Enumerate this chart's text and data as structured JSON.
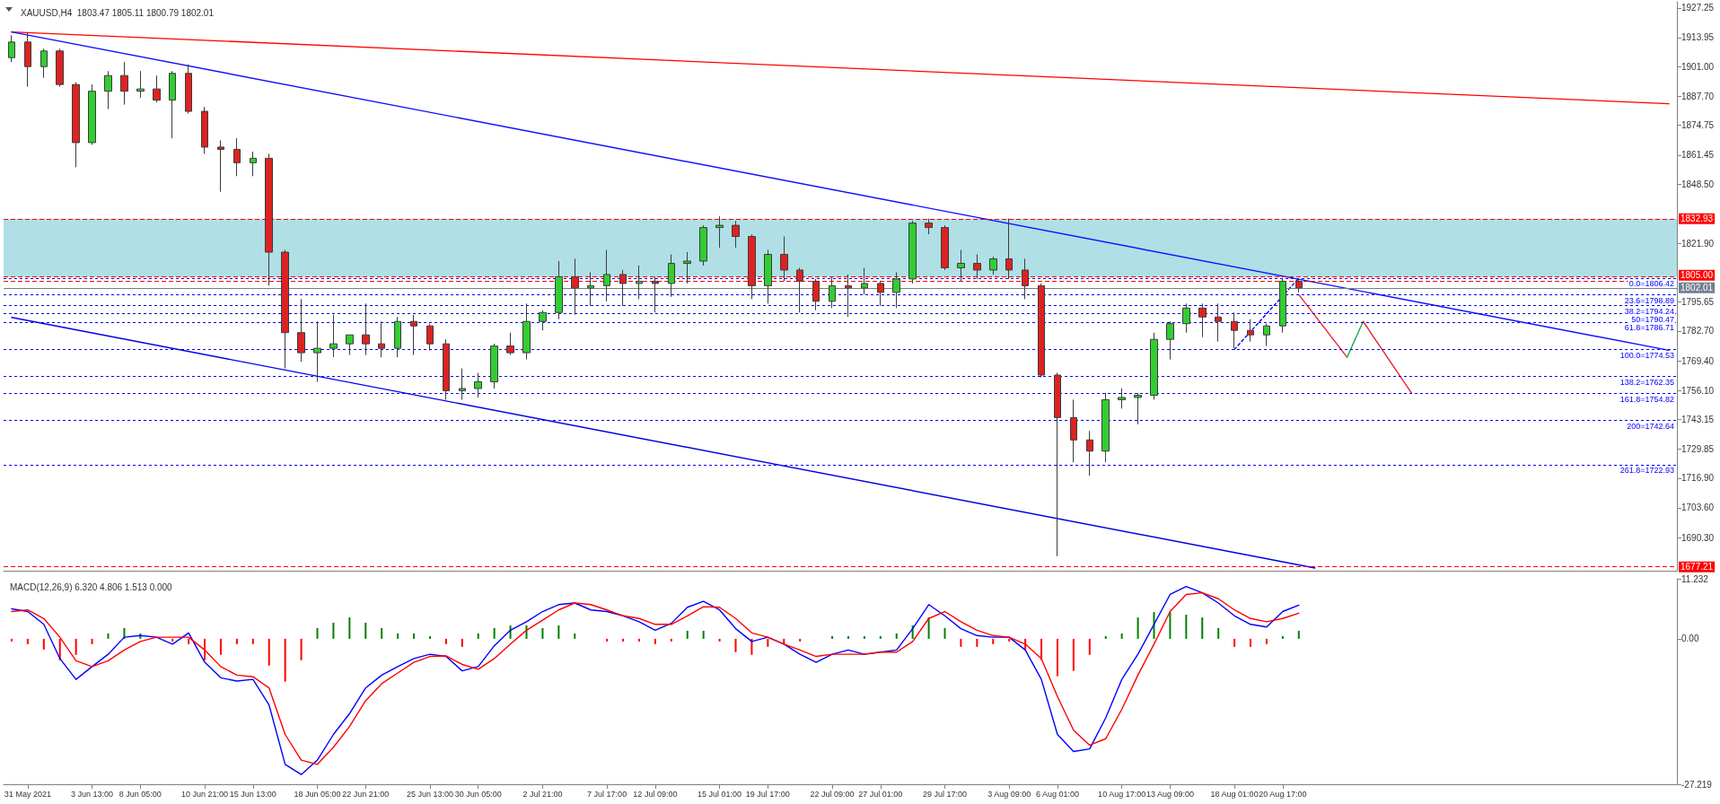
{
  "chart_data": [
    {
      "type": "candlestick",
      "title": "XAUUSD,H4  1803.47 1805.11 1800.79 1802.01",
      "categories": [
        null,
        null,
        null,
        null,
        null,
        null,
        null,
        null,
        null,
        null,
        null,
        null,
        null,
        null,
        null,
        null,
        null,
        null,
        null,
        null,
        null,
        null,
        null,
        null,
        null,
        null,
        null,
        null,
        null,
        null,
        null,
        null,
        null,
        null,
        null,
        null,
        null,
        null,
        null,
        null,
        null,
        null,
        null,
        null,
        null,
        null,
        null,
        null,
        null,
        null,
        null,
        null,
        null,
        null,
        null,
        null,
        null,
        null,
        null,
        null,
        null,
        null,
        null,
        null,
        null,
        null,
        null,
        null,
        null,
        null,
        null,
        null,
        null,
        null,
        null,
        null,
        null,
        null,
        null,
        null,
        null,
        null,
        null,
        null,
        null,
        null,
        null,
        null,
        null,
        null,
        null,
        null,
        null,
        null,
        null,
        null,
        null,
        null,
        null,
        null,
        null,
        null,
        null,
        null
      ],
      "ohlc": [
        [
          1905,
          1915,
          1903,
          1912
        ],
        [
          1912,
          1916,
          1892,
          1901
        ],
        [
          1901,
          1909,
          1896,
          1908
        ],
        [
          1908,
          1909,
          1892,
          1893
        ],
        [
          1893,
          1894,
          1856,
          1867
        ],
        [
          1867,
          1893,
          1866,
          1890
        ],
        [
          1890,
          1899,
          1882,
          1897
        ],
        [
          1897,
          1903,
          1884,
          1890
        ],
        [
          1890,
          1899,
          1887,
          1891
        ],
        [
          1891,
          1897,
          1885,
          1886
        ],
        [
          1886,
          1899,
          1869,
          1898
        ],
        [
          1898,
          1902,
          1880,
          1881
        ],
        [
          1881,
          1883,
          1862,
          1865
        ],
        [
          1865,
          1868,
          1845,
          1864
        ],
        [
          1864,
          1869,
          1852,
          1858
        ],
        [
          1858,
          1863,
          1852,
          1860
        ],
        [
          1860,
          1862,
          1803,
          1818
        ],
        [
          1818,
          1819,
          1766,
          1782
        ],
        [
          1782,
          1797,
          1769,
          1773
        ],
        [
          1773,
          1787,
          1760,
          1775
        ],
        [
          1775,
          1790,
          1771,
          1777
        ],
        [
          1777,
          1781,
          1772,
          1781
        ],
        [
          1781,
          1795,
          1772,
          1777
        ],
        [
          1777,
          1787,
          1771,
          1775
        ],
        [
          1775,
          1789,
          1771,
          1787
        ],
        [
          1787,
          1790,
          1772,
          1785
        ],
        [
          1785,
          1786,
          1774,
          1777
        ],
        [
          1777,
          1779,
          1752,
          1756
        ],
        [
          1756,
          1766,
          1752,
          1757
        ],
        [
          1757,
          1764,
          1753,
          1760
        ],
        [
          1760,
          1777,
          1757,
          1776
        ],
        [
          1776,
          1782,
          1772,
          1773
        ],
        [
          1773,
          1795,
          1770,
          1787
        ],
        [
          1787,
          1792,
          1783,
          1791
        ],
        [
          1791,
          1814,
          1788,
          1807
        ],
        [
          1807,
          1815,
          1790,
          1802
        ],
        [
          1802,
          1809,
          1794,
          1803
        ],
        [
          1803,
          1819,
          1796,
          1808
        ],
        [
          1808,
          1810,
          1794,
          1804
        ],
        [
          1804,
          1812,
          1797,
          1805
        ],
        [
          1805,
          1807,
          1791,
          1804
        ],
        [
          1804,
          1817,
          1798,
          1813
        ],
        [
          1813,
          1818,
          1804,
          1814
        ],
        [
          1814,
          1830,
          1812,
          1829
        ],
        [
          1829,
          1834,
          1820,
          1830
        ],
        [
          1830,
          1832,
          1820,
          1825
        ],
        [
          1825,
          1826,
          1797,
          1803
        ],
        [
          1803,
          1819,
          1795,
          1817
        ],
        [
          1817,
          1825,
          1805,
          1810
        ],
        [
          1810,
          1811,
          1791,
          1805
        ],
        [
          1805,
          1806,
          1792,
          1796
        ],
        [
          1796,
          1807,
          1793,
          1803
        ],
        [
          1803,
          1808,
          1789,
          1802
        ],
        [
          1802,
          1811,
          1799,
          1804
        ],
        [
          1804,
          1805,
          1794,
          1800
        ],
        [
          1800,
          1809,
          1793,
          1806
        ],
        [
          1806,
          1832,
          1804,
          1831
        ],
        [
          1831,
          1833,
          1826,
          1829
        ],
        [
          1829,
          1830,
          1810,
          1811
        ],
        [
          1811,
          1819,
          1805,
          1813
        ],
        [
          1813,
          1817,
          1806,
          1810
        ],
        [
          1810,
          1816,
          1808,
          1815
        ],
        [
          1815,
          1833,
          1806,
          1810
        ],
        [
          1810,
          1815,
          1797,
          1803
        ],
        [
          1803,
          1804,
          1762,
          1763
        ],
        [
          1763,
          1764,
          1682,
          1744
        ],
        [
          1744,
          1752,
          1724,
          1734
        ],
        [
          1734,
          1738,
          1718,
          1729
        ],
        [
          1729,
          1755,
          1724,
          1752
        ],
        [
          1752,
          1757,
          1748,
          1753
        ],
        [
          1753,
          1755,
          1741,
          1754
        ],
        [
          1754,
          1782,
          1752,
          1779
        ],
        [
          1779,
          1787,
          1770,
          1786
        ],
        [
          1786,
          1795,
          1782,
          1793
        ],
        [
          1793,
          1795,
          1780,
          1789
        ],
        [
          1789,
          1795,
          1778,
          1787
        ],
        [
          1787,
          1791,
          1775,
          1783
        ],
        [
          1783,
          1788,
          1778,
          1781
        ],
        [
          1781,
          1786,
          1776,
          1785
        ],
        [
          1785,
          1806,
          1782,
          1805
        ],
        [
          1805,
          1806,
          1800,
          1802.01
        ],
        null,
        null,
        null,
        null,
        null,
        null,
        null,
        null,
        null,
        null,
        null,
        null,
        null,
        null,
        null,
        null,
        null,
        null,
        null,
        null,
        null,
        null,
        null
      ],
      "colors": [
        "#32cd32",
        "#dd2222",
        "#32cd32",
        "#dd2222",
        "#dd2222",
        "#32cd32",
        "#32cd32",
        "#dd2222",
        "#32cd32",
        "#dd2222",
        "#32cd32",
        "#dd2222",
        "#dd2222",
        "#dd2222",
        "#dd2222",
        "#32cd32",
        "#dd2222",
        "#dd2222",
        "#dd2222",
        "#32cd32",
        "#32cd32",
        "#32cd32",
        "#dd2222",
        "#dd2222",
        "#32cd32",
        "#dd2222",
        "#dd2222",
        "#dd2222",
        "#32cd32",
        "#32cd32",
        "#32cd32",
        "#dd2222",
        "#32cd32",
        "#32cd32",
        "#32cd32",
        "#dd2222",
        "#32cd32",
        "#32cd32",
        "#dd2222",
        "#32cd32",
        "#dd2222",
        "#32cd32",
        "#32cd32",
        "#32cd32",
        "#32cd32",
        "#dd2222",
        "#dd2222",
        "#32cd32",
        "#dd2222",
        "#dd2222",
        "#dd2222",
        "#32cd32",
        "#dd2222",
        "#32cd32",
        "#dd2222",
        "#32cd32",
        "#32cd32",
        "#dd2222",
        "#dd2222",
        "#32cd32",
        "#dd2222",
        "#32cd32",
        "#dd2222",
        "#dd2222",
        "#dd2222",
        "#dd2222",
        "#dd2222",
        "#dd2222",
        "#32cd32",
        "#32cd32",
        "#32cd32",
        "#32cd32",
        "#32cd32",
        "#32cd32",
        "#dd2222",
        "#dd2222",
        "#dd2222",
        "#dd2222",
        "#32cd32",
        "#32cd32",
        "#dd2222",
        null,
        null,
        null,
        null,
        null,
        null,
        null,
        null,
        null,
        null,
        null,
        null,
        null,
        null,
        null,
        null,
        null,
        null,
        null,
        null,
        null,
        null,
        null
      ],
      "series": [
        {
          "type": "line",
          "color": "#ff0000",
          "line_style": "solid",
          "values": [
            1916.5,
            null,
            null,
            null,
            null,
            null,
            null,
            null,
            null,
            null,
            null,
            null,
            null,
            null,
            null,
            null,
            null,
            null,
            null,
            null,
            null,
            null,
            null,
            null,
            null,
            null,
            null,
            null,
            null,
            null,
            null,
            null,
            null,
            null,
            null,
            null,
            null,
            null,
            null,
            null,
            null,
            null,
            null,
            null,
            null,
            null,
            null,
            null,
            null,
            null,
            null,
            null,
            null,
            null,
            null,
            null,
            null,
            null,
            null,
            null,
            null,
            null,
            null,
            null,
            null,
            null,
            null,
            null,
            null,
            null,
            null,
            null,
            null,
            null,
            null,
            null,
            null,
            null,
            null,
            null,
            null,
            null,
            null,
            null,
            null,
            null,
            null,
            null,
            null,
            null,
            null,
            null,
            null,
            null,
            null,
            null,
            null,
            null,
            null,
            null,
            null,
            null,
            null,
            1884.4
          ]
        },
        {
          "type": "line",
          "color": "#1010ff",
          "line_style": "solid",
          "values": [
            1916.5,
            null,
            null,
            null,
            null,
            null,
            null,
            null,
            null,
            null,
            null,
            null,
            null,
            null,
            null,
            null,
            null,
            null,
            null,
            null,
            null,
            null,
            null,
            null,
            null,
            null,
            null,
            null,
            null,
            null,
            null,
            null,
            null,
            null,
            null,
            null,
            null,
            null,
            null,
            null,
            null,
            null,
            null,
            null,
            null,
            null,
            null,
            null,
            null,
            null,
            null,
            null,
            null,
            null,
            null,
            null,
            null,
            null,
            null,
            null,
            null,
            null,
            null,
            null,
            null,
            null,
            null,
            null,
            null,
            null,
            null,
            null,
            null,
            null,
            null,
            null,
            null,
            null,
            null,
            null,
            null,
            null,
            null,
            null,
            null,
            null,
            null,
            null,
            null,
            null,
            null,
            null,
            null,
            null,
            null,
            null,
            null,
            null,
            null,
            null,
            null,
            null,
            null,
            1774.1
          ]
        },
        {
          "type": "line",
          "color": "#0000e6",
          "line_style": "solid",
          "values": [
            1788.8,
            null,
            null,
            null,
            null,
            null,
            null,
            null,
            null,
            null,
            null,
            null,
            null,
            null,
            null,
            null,
            null,
            null,
            null,
            null,
            null,
            null,
            null,
            null,
            null,
            null,
            null,
            null,
            null,
            null,
            null,
            null,
            null,
            null,
            null,
            null,
            null,
            null,
            null,
            null,
            null,
            null,
            null,
            null,
            null,
            null,
            null,
            null,
            null,
            null,
            null,
            null,
            null,
            null,
            null,
            null,
            null,
            null,
            null,
            null,
            null,
            null,
            null,
            null,
            null,
            null,
            null,
            null,
            null,
            null,
            null,
            null,
            null,
            null,
            null,
            null,
            null,
            null,
            null,
            null,
            null,
            1676.7,
            null,
            null,
            null,
            null,
            null,
            null,
            null,
            null,
            null,
            null,
            null,
            null,
            null,
            null,
            null,
            null,
            null,
            null,
            null,
            null,
            null,
            null
          ]
        },
        {
          "type": "line",
          "color": "#0000ff",
          "line_style": "dotted",
          "values": [
            null,
            null,
            null,
            null,
            null,
            null,
            null,
            null,
            null,
            null,
            null,
            null,
            null,
            null,
            null,
            null,
            null,
            null,
            null,
            null,
            null,
            null,
            null,
            null,
            null,
            null,
            null,
            null,
            null,
            null,
            null,
            null,
            null,
            null,
            null,
            null,
            null,
            null,
            null,
            null,
            null,
            null,
            null,
            null,
            null,
            null,
            null,
            null,
            null,
            null,
            null,
            null,
            null,
            null,
            null,
            null,
            null,
            null,
            null,
            null,
            null,
            null,
            null,
            null,
            null,
            null,
            null,
            null,
            null,
            null,
            null,
            null,
            null,
            null,
            null,
            null,
            1774.5,
            null,
            null,
            null,
            1806.4,
            null,
            null,
            null,
            null,
            null,
            null,
            null,
            null,
            null,
            null,
            null,
            null,
            null,
            null,
            null,
            null,
            null,
            null,
            null,
            null,
            null,
            null,
            null
          ]
        },
        {
          "type": "line",
          "color": "#e8232a",
          "line_style": "solid",
          "values": [
            null,
            null,
            null,
            null,
            null,
            null,
            null,
            null,
            null,
            null,
            null,
            null,
            null,
            null,
            null,
            null,
            null,
            null,
            null,
            null,
            null,
            null,
            null,
            null,
            null,
            null,
            null,
            null,
            null,
            null,
            null,
            null,
            null,
            null,
            null,
            null,
            null,
            null,
            null,
            null,
            null,
            null,
            null,
            null,
            null,
            null,
            null,
            null,
            null,
            null,
            null,
            null,
            null,
            null,
            null,
            null,
            null,
            null,
            null,
            null,
            null,
            null,
            null,
            null,
            null,
            null,
            null,
            null,
            null,
            null,
            null,
            null,
            null,
            null,
            null,
            null,
            null,
            null,
            null,
            null,
            1799,
            null,
            null,
            1771,
            null,
            null,
            null,
            null,
            null,
            null,
            null,
            null,
            null,
            null,
            null,
            null,
            null,
            null,
            null,
            null,
            null,
            null,
            null,
            null
          ]
        },
        {
          "type": "line",
          "color": "#22aa44",
          "line_style": "solid",
          "values": [
            null,
            null,
            null,
            null,
            null,
            null,
            null,
            null,
            null,
            null,
            null,
            null,
            null,
            null,
            null,
            null,
            null,
            null,
            null,
            null,
            null,
            null,
            null,
            null,
            null,
            null,
            null,
            null,
            null,
            null,
            null,
            null,
            null,
            null,
            null,
            null,
            null,
            null,
            null,
            null,
            null,
            null,
            null,
            null,
            null,
            null,
            null,
            null,
            null,
            null,
            null,
            null,
            null,
            null,
            null,
            null,
            null,
            null,
            null,
            null,
            null,
            null,
            null,
            null,
            null,
            null,
            null,
            null,
            null,
            null,
            null,
            null,
            null,
            null,
            null,
            null,
            null,
            null,
            null,
            null,
            null,
            null,
            null,
            1771,
            1787,
            null,
            null,
            null,
            null,
            null,
            null,
            null,
            null,
            null,
            null,
            null,
            null,
            null,
            null,
            null,
            null,
            null,
            null,
            null
          ]
        },
        {
          "type": "line",
          "color": "#e8232a",
          "line_style": "solid",
          "values": [
            null,
            null,
            null,
            null,
            null,
            null,
            null,
            null,
            null,
            null,
            null,
            null,
            null,
            null,
            null,
            null,
            null,
            null,
            null,
            null,
            null,
            null,
            null,
            null,
            null,
            null,
            null,
            null,
            null,
            null,
            null,
            null,
            null,
            null,
            null,
            null,
            null,
            null,
            null,
            null,
            null,
            null,
            null,
            null,
            null,
            null,
            null,
            null,
            null,
            null,
            null,
            null,
            null,
            null,
            null,
            null,
            null,
            null,
            null,
            null,
            null,
            null,
            null,
            null,
            null,
            null,
            null,
            null,
            null,
            null,
            null,
            null,
            null,
            null,
            null,
            null,
            null,
            null,
            null,
            null,
            null,
            null,
            null,
            null,
            1787,
            null,
            null,
            1755,
            null,
            null,
            null,
            null,
            null,
            null,
            null,
            null,
            null,
            null,
            null,
            null,
            null,
            null,
            null,
            null
          ]
        }
      ],
      "ref_lines": [
        {
          "axis": "y",
          "value": 1832.93,
          "label": "1832.93",
          "color": "#ff0000",
          "line_style": "dashed"
        },
        {
          "axis": "y",
          "value": 1806.89,
          "color": "#ff0000",
          "line_style": "dashed"
        },
        {
          "axis": "y",
          "value": 1805.0,
          "label": "1805.00",
          "color": "#ff0000",
          "line_style": "dashed"
        },
        {
          "axis": "y",
          "value": 1802.01,
          "label": "1802.01",
          "color": "#708090",
          "line_style": "solid"
        },
        {
          "axis": "y",
          "value": 1677.21,
          "label": "1677.21",
          "color": "#ff0000",
          "line_style": "dashed"
        },
        {
          "axis": "y",
          "value": 1806.42,
          "label": "0.0=1806.42",
          "color": "#0000ff",
          "line_style": "dotted"
        },
        {
          "axis": "y",
          "value": 1798.89,
          "label": "23.6=1798.89",
          "color": "#0000ff",
          "line_style": "dotted"
        },
        {
          "axis": "y",
          "value": 1794.24,
          "label": "38.2=1794.24",
          "color": "#0000ff",
          "line_style": "dotted"
        },
        {
          "axis": "y",
          "value": 1790.47,
          "label": "50=1790.47",
          "color": "#0000ff",
          "line_style": "dotted"
        },
        {
          "axis": "y",
          "value": 1786.71,
          "label": "61.8=1786.71",
          "color": "#0000ff",
          "line_style": "dotted"
        },
        {
          "axis": "y",
          "value": 1774.53,
          "label": "100.0=1774.53",
          "color": "#0000ff",
          "line_style": "dotted"
        },
        {
          "axis": "y",
          "value": 1762.35,
          "label": "138.2=1762.35",
          "color": "#0000ff",
          "line_style": "dotted"
        },
        {
          "axis": "y",
          "value": 1754.82,
          "label": "161.8=1754.82",
          "color": "#0000ff",
          "line_style": "dotted"
        },
        {
          "axis": "y",
          "value": 1742.64,
          "label": "200=1742.64",
          "color": "#0000ff",
          "line_style": "dotted"
        },
        {
          "axis": "y",
          "value": 1722.93,
          "label": "261.8=1722.93",
          "color": "#0000ff",
          "line_style": "dotted"
        }
      ],
      "bands": [
        {
          "axis": "y",
          "from": 1806.89,
          "to": 1832.93,
          "color": "#b0dfe5"
        }
      ],
      "ylim": [
        1675.5,
        1930
      ],
      "yticks": [
        1927.25,
        1913.95,
        {
          "value": 1901,
          "label": "1901.00"
        },
        {
          "value": 1887.7,
          "label": "1887.70"
        },
        1874.75,
        1861.45,
        {
          "value": 1848.5,
          "label": "1848.50"
        },
        {
          "value": 1821.9,
          "label": "1821.90"
        },
        1795.65,
        {
          "value": 1782.7,
          "label": "1782.70"
        },
        {
          "value": 1769.4,
          "label": "1769.40"
        },
        {
          "value": 1756.1,
          "label": "1756.10"
        },
        1743.15,
        1729.85,
        {
          "value": 1716.9,
          "label": "1716.90"
        },
        {
          "value": 1703.6,
          "label": "1703.60"
        },
        {
          "value": 1690.3,
          "label": "1690.30"
        }
      ],
      "tick_labels": "y",
      "grid": false
    },
    {
      "type": "line",
      "title": "MACD(12,26,9) 6.320 4.806 1.513 0.000",
      "categories": [
        null,
        "31 May 2021",
        null,
        null,
        null,
        "3 Jun 13:00",
        null,
        null,
        "8 Jun 05:00",
        null,
        null,
        null,
        "10 Jun 21:00",
        null,
        null,
        "15 Jun 13:00",
        null,
        null,
        null,
        "18 Jun 05:00",
        null,
        null,
        "22 Jun 21:00",
        null,
        null,
        null,
        "25 Jun 13:00",
        null,
        null,
        "30 Jun 05:00",
        null,
        null,
        null,
        "2 Jul 21:00",
        null,
        null,
        null,
        "7 Jul 17:00",
        null,
        null,
        "12 Jul 09:00",
        null,
        null,
        null,
        "15 Jul 01:00",
        null,
        null,
        "19 Jul 17:00",
        null,
        null,
        null,
        "22 Jul 09:00",
        null,
        null,
        "27 Jul 01:00",
        null,
        null,
        null,
        "29 Jul 17:00",
        null,
        null,
        null,
        "3 Aug 09:00",
        null,
        null,
        "6 Aug 01:00",
        null,
        null,
        null,
        "10 Aug 17:00",
        null,
        null,
        "13 Aug 09:00",
        null,
        null,
        null,
        "18 Aug 01:00",
        null,
        null,
        "20 Aug 17:00",
        null,
        null,
        null,
        null,
        null,
        null,
        null,
        null,
        null,
        null,
        null,
        null,
        null,
        null,
        null,
        null,
        null,
        null,
        null,
        null,
        null,
        null,
        null,
        null
      ],
      "series": [
        {
          "type": "bar",
          "color": "#008000",
          "values": [
            null,
            null,
            null,
            null,
            null,
            null,
            1,
            2,
            1,
            null,
            null,
            null,
            null,
            null,
            null,
            null,
            null,
            null,
            null,
            2,
            3,
            4,
            3,
            2,
            1,
            1,
            0.5,
            null,
            null,
            1,
            2,
            2.5,
            2.5,
            2,
            2.5,
            1,
            null,
            null,
            null,
            null,
            null,
            null,
            1.5,
            1.5,
            null,
            null,
            null,
            null,
            null,
            null,
            null,
            0.5,
            0.5,
            0.5,
            0.5,
            1,
            2.5,
            4,
            2,
            null,
            null,
            null,
            null,
            null,
            null,
            null,
            null,
            null,
            0.5,
            1,
            4,
            5,
            5,
            4.5,
            4,
            2,
            null,
            null,
            null,
            0.5,
            1.5,
            null,
            null,
            null,
            null,
            null,
            null,
            null,
            null,
            null,
            null,
            null,
            null,
            null,
            null,
            null,
            null,
            null,
            null,
            null,
            null,
            null,
            null,
            null
          ]
        },
        {
          "type": "bar",
          "color": "#ff0000",
          "values": [
            -0.5,
            -1,
            -2,
            -4,
            -3,
            -1,
            null,
            null,
            null,
            null,
            -0.5,
            -1,
            -4,
            -3,
            -1,
            -1,
            -5,
            -8,
            -4,
            null,
            null,
            null,
            null,
            null,
            null,
            null,
            null,
            -1,
            -1.5,
            null,
            null,
            null,
            null,
            null,
            null,
            null,
            null,
            -0.5,
            -0.5,
            -0.5,
            -1,
            -0.5,
            null,
            null,
            -0.5,
            -2.5,
            -3,
            -1.5,
            -1,
            -0.5,
            null,
            null,
            null,
            null,
            null,
            null,
            null,
            null,
            null,
            -1.5,
            -1.5,
            -1,
            -0.5,
            -2,
            -4,
            -7,
            -6,
            -3,
            null,
            null,
            null,
            null,
            null,
            null,
            null,
            null,
            -1.5,
            -1.5,
            -1,
            null,
            null,
            null,
            null,
            null,
            null,
            null,
            null,
            null,
            null,
            null,
            null,
            null,
            null,
            null,
            null,
            null,
            null,
            null,
            null,
            null,
            null,
            null,
            null,
            null
          ]
        },
        {
          "type": "line",
          "color": "#0000ff",
          "values": [
            5.6,
            5.1,
            2.7,
            -3.7,
            -7.6,
            -5.2,
            -2.9,
            0.3,
            0.6,
            0.3,
            -1,
            1.1,
            -4.4,
            -7.3,
            -7.9,
            -7.6,
            -12.4,
            -23.5,
            -25.4,
            -22.7,
            -17.9,
            -14,
            -9.2,
            -6.8,
            -5.2,
            -3.7,
            -2.9,
            -3.3,
            -6,
            -5.2,
            -1.3,
            1.6,
            3.2,
            5.1,
            6.4,
            6.7,
            5.4,
            5.1,
            4.3,
            3.2,
            1.6,
            2.9,
            5.9,
            7,
            5.4,
            1.9,
            -0.5,
            0.3,
            -1,
            -2.9,
            -4.4,
            -2.9,
            -2.1,
            -2.9,
            -2.5,
            -2.1,
            1.9,
            6.4,
            4.3,
            1.9,
            0.6,
            0.3,
            0.3,
            -2.1,
            -7.6,
            -17.9,
            -21.1,
            -20.6,
            -14.8,
            -7.6,
            -2.9,
            2.7,
            8.3,
            9.8,
            8.6,
            6.7,
            4.3,
            2.7,
            2.2,
            5.1,
            6.3,
            null,
            null,
            null,
            null,
            null,
            null,
            null,
            null,
            null,
            null,
            null,
            null,
            null,
            null,
            null,
            null,
            null,
            null,
            null,
            null,
            null,
            null,
            null
          ]
        },
        {
          "type": "line",
          "color": "#ff0000",
          "values": [
            5.1,
            5.4,
            3.8,
            0.3,
            -4.1,
            -5.2,
            -4.1,
            -2.1,
            -0.5,
            0.3,
            0.3,
            0.3,
            -2.1,
            -5.2,
            -6.8,
            -7.1,
            -9.2,
            -17.9,
            -22.7,
            -23.5,
            -20.3,
            -16.4,
            -11.6,
            -8.4,
            -6.4,
            -4.4,
            -3.3,
            -3.2,
            -4.8,
            -5.7,
            -3.7,
            -1,
            1.6,
            3.5,
            5.4,
            6.7,
            6.4,
            5.4,
            4.3,
            3.8,
            2.7,
            2.7,
            4.3,
            6,
            5.9,
            3.8,
            1.1,
            0.3,
            -1,
            -2.1,
            -3.3,
            -2.9,
            -2.9,
            -2.9,
            -2.5,
            -2.5,
            -0.5,
            3.8,
            5.1,
            3.2,
            1.6,
            0.6,
            0.3,
            -1,
            -3.7,
            -10.8,
            -17.1,
            -19.9,
            -18.7,
            -13.2,
            -6.8,
            -1,
            5.1,
            8.3,
            8.6,
            7.5,
            5.4,
            3.8,
            3.2,
            3.8,
            4.8,
            null,
            null,
            null,
            null,
            null,
            null,
            null,
            null,
            null,
            null,
            null,
            null,
            null,
            null,
            null,
            null,
            null,
            null,
            null,
            null,
            null,
            null,
            null
          ]
        }
      ],
      "ylim": [
        -27.219,
        11.232
      ],
      "yticks": [
        11.232,
        {
          "value": 0,
          "label": "0.00"
        },
        -27.219
      ],
      "grid": false
    }
  ]
}
